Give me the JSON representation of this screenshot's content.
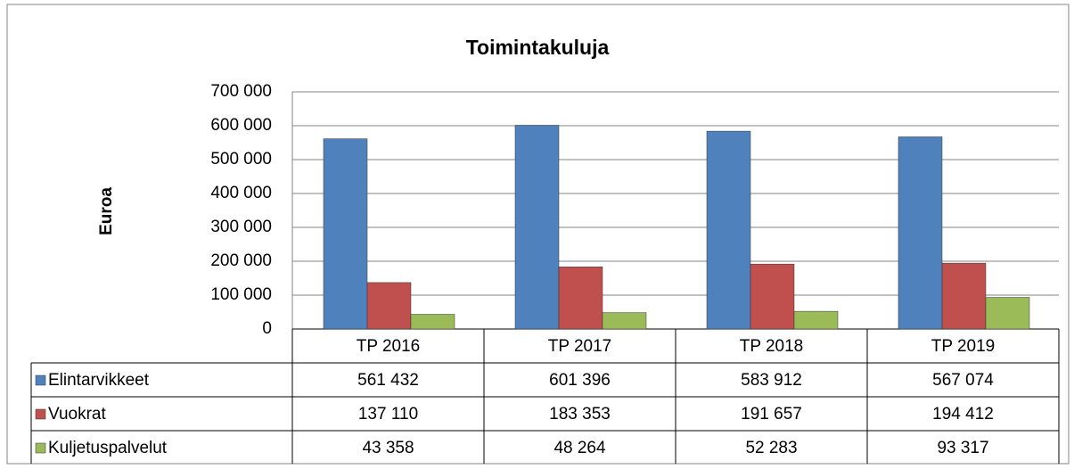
{
  "chart_data": {
    "type": "bar",
    "title": "Toimintakuluja",
    "y_label": "Euroa",
    "categories": [
      "TP 2016",
      "TP 2017",
      "TP 2018",
      "TP 2019"
    ],
    "series": [
      {
        "name": "Elintarvikkeet",
        "color": "#4f81bd",
        "values": [
          561432,
          601396,
          583912,
          567074
        ],
        "value_labels": [
          "561 432",
          "601 396",
          "583 912",
          "567 074"
        ]
      },
      {
        "name": "Vuokrat",
        "color": "#c0504d",
        "values": [
          137110,
          183353,
          191657,
          194412
        ],
        "value_labels": [
          "137 110",
          "183 353",
          "191 657",
          "194 412"
        ]
      },
      {
        "name": "Kuljetuspalvelut",
        "color": "#9bbb59",
        "values": [
          43358,
          48264,
          52283,
          93317
        ],
        "value_labels": [
          "43 358",
          "48 264",
          "52 283",
          "93 317"
        ]
      }
    ],
    "ylim": [
      0,
      700000
    ],
    "yticks": [
      0,
      {
        "value": 100000,
        "label": "100 000"
      },
      {
        "value": 200000,
        "label": "200 000"
      },
      {
        "value": 300000,
        "label": "300 000"
      },
      {
        "value": 400000,
        "label": "400 000"
      },
      {
        "value": 500000,
        "label": "500 000"
      },
      {
        "value": 600000,
        "label": "600 000"
      },
      {
        "value": 700000,
        "label": "700 000"
      }
    ],
    "grid": true
  }
}
